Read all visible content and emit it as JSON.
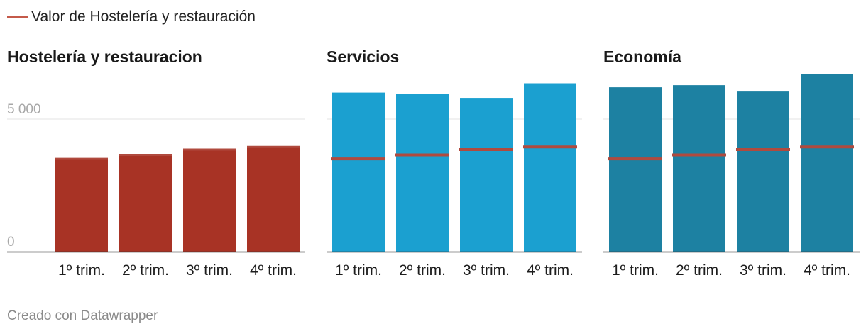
{
  "legend": {
    "label": "Valor de Hostelería y restauración",
    "color": "#c45a4a"
  },
  "footer": {
    "text": "Creado con Datawrapper"
  },
  "colors": {
    "hosteleria": "#a83325",
    "servicios": "#1ba0d0",
    "economia": "#1d81a2",
    "reference_line": "#b04a3e",
    "grid": "#e3e3e3",
    "axis": "#333333"
  },
  "chart_data": [
    {
      "type": "bar",
      "title": "Hostelería y restauracion",
      "categories": [
        "1º trim.",
        "2º trim.",
        "3º trim.",
        "4º trim."
      ],
      "values": [
        3500,
        3650,
        3850,
        3950
      ],
      "reference_values": [
        3500,
        3650,
        3850,
        3950
      ],
      "reference_name": "Valor de Hostelería y restauración",
      "ylim": [
        0,
        5000
      ],
      "yticks": [
        0,
        5000
      ],
      "ytick_labels": [
        "0",
        "5 000"
      ],
      "color": "#a83325"
    },
    {
      "type": "bar",
      "title": "Servicios",
      "categories": [
        "1º trim.",
        "2º trim.",
        "3º trim.",
        "4º trim."
      ],
      "values": [
        6000,
        5950,
        5800,
        6350
      ],
      "reference_values": [
        3500,
        3650,
        3850,
        3950
      ],
      "reference_name": "Valor de Hostelería y restauración",
      "ylim": [
        0,
        5000
      ],
      "yticks": [
        0,
        5000
      ],
      "color": "#1ba0d0"
    },
    {
      "type": "bar",
      "title": "Economía",
      "categories": [
        "1º trim.",
        "2º trim.",
        "3º trim.",
        "4º trim."
      ],
      "values": [
        6200,
        6280,
        6040,
        6700
      ],
      "reference_values": [
        3500,
        3650,
        3850,
        3950
      ],
      "reference_name": "Valor de Hostelería y restauración",
      "ylim": [
        0,
        5000
      ],
      "yticks": [
        0,
        5000
      ],
      "color": "#1d81a2"
    }
  ]
}
